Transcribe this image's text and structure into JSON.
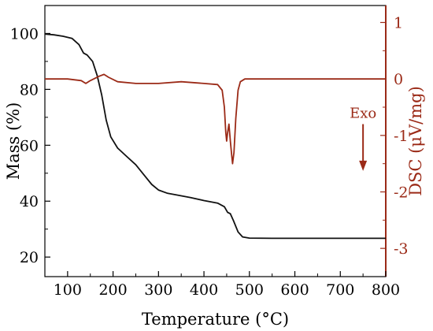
{
  "chart_data": {
    "type": "line",
    "xlabel": "Temperature (°C)",
    "ylabel_left": "Mass (%)",
    "ylabel_right": "DSC (μV/mg)",
    "xlim": [
      50,
      800
    ],
    "ylim_left": [
      13,
      110
    ],
    "ylim_right": [
      -3.5,
      1.3
    ],
    "x_ticks": [
      100,
      200,
      300,
      400,
      500,
      600,
      700,
      800
    ],
    "y_left_ticks": [
      20,
      40,
      60,
      80,
      100
    ],
    "y_right_ticks": [
      1,
      0,
      -1,
      -2,
      -3
    ],
    "y_right_tick_labels": [
      "1",
      "0",
      "-1",
      "-2",
      "-3"
    ],
    "grid": false,
    "colors": {
      "mass": "#111111",
      "dsc": "#9b2a17",
      "axis_left": "#000000",
      "axis_right": "#9b2a17"
    },
    "annotation": {
      "text": "Exo",
      "arrow": "down",
      "x": 750,
      "y_from": -0.8,
      "y_to": -1.6
    },
    "series": [
      {
        "axis": "left",
        "x": [
          50,
          70,
          90,
          110,
          125,
          135,
          143,
          155,
          165,
          175,
          185,
          195,
          210,
          230,
          250,
          270,
          285,
          300,
          320,
          340,
          370,
          400,
          430,
          445,
          452,
          458,
          465,
          475,
          485,
          500,
          550,
          600,
          700,
          800
        ],
        "values": [
          99.8,
          99.5,
          99,
          98.2,
          96,
          93,
          92.3,
          90,
          85,
          78,
          69,
          63,
          59,
          56,
          53,
          49,
          46,
          44,
          42.8,
          42.2,
          41.3,
          40.2,
          39.3,
          38,
          36,
          35.5,
          33,
          29,
          27.2,
          26.8,
          26.7,
          26.7,
          26.7,
          26.7
        ]
      },
      {
        "axis": "right",
        "x": [
          50,
          100,
          130,
          140,
          150,
          170,
          180,
          190,
          210,
          250,
          300,
          350,
          400,
          430,
          440,
          445,
          448,
          450,
          452,
          455,
          458,
          461,
          463,
          466,
          470,
          475,
          480,
          490,
          520,
          600,
          700,
          800
        ],
        "values": [
          0.0,
          0.0,
          -0.03,
          -0.08,
          -0.03,
          0.05,
          0.08,
          0.03,
          -0.05,
          -0.08,
          -0.08,
          -0.05,
          -0.08,
          -0.1,
          -0.2,
          -0.5,
          -0.95,
          -1.1,
          -0.95,
          -0.8,
          -1.1,
          -1.35,
          -1.5,
          -1.3,
          -0.7,
          -0.2,
          -0.05,
          0.0,
          0.0,
          0.0,
          0.0,
          0.0
        ]
      }
    ]
  }
}
